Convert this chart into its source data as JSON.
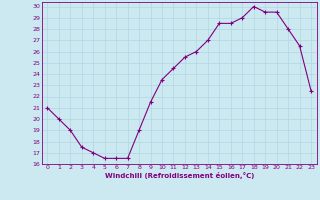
{
  "x": [
    0,
    1,
    2,
    3,
    4,
    5,
    6,
    7,
    8,
    9,
    10,
    11,
    12,
    13,
    14,
    15,
    16,
    17,
    18,
    19,
    20,
    21,
    22,
    23
  ],
  "y": [
    21,
    20,
    19,
    17.5,
    17,
    16.5,
    16.5,
    16.5,
    19,
    21.5,
    23.5,
    24.5,
    25.5,
    26,
    27,
    28.5,
    28.5,
    29,
    30,
    29.5,
    29.5,
    28,
    26.5,
    22.5
  ],
  "ylim": [
    16,
    30.4
  ],
  "xlim": [
    -0.5,
    23.5
  ],
  "yticks": [
    16,
    17,
    18,
    19,
    20,
    21,
    22,
    23,
    24,
    25,
    26,
    27,
    28,
    29,
    30
  ],
  "xticks": [
    0,
    1,
    2,
    3,
    4,
    5,
    6,
    7,
    8,
    9,
    10,
    11,
    12,
    13,
    14,
    15,
    16,
    17,
    18,
    19,
    20,
    21,
    22,
    23
  ],
  "line_color": "#800080",
  "marker": "+",
  "xlabel": "Windchill (Refroidissement éolien,°C)",
  "bg_color": "#cce8f0",
  "grid_color": "#b0d8e0",
  "text_color": "#800080"
}
